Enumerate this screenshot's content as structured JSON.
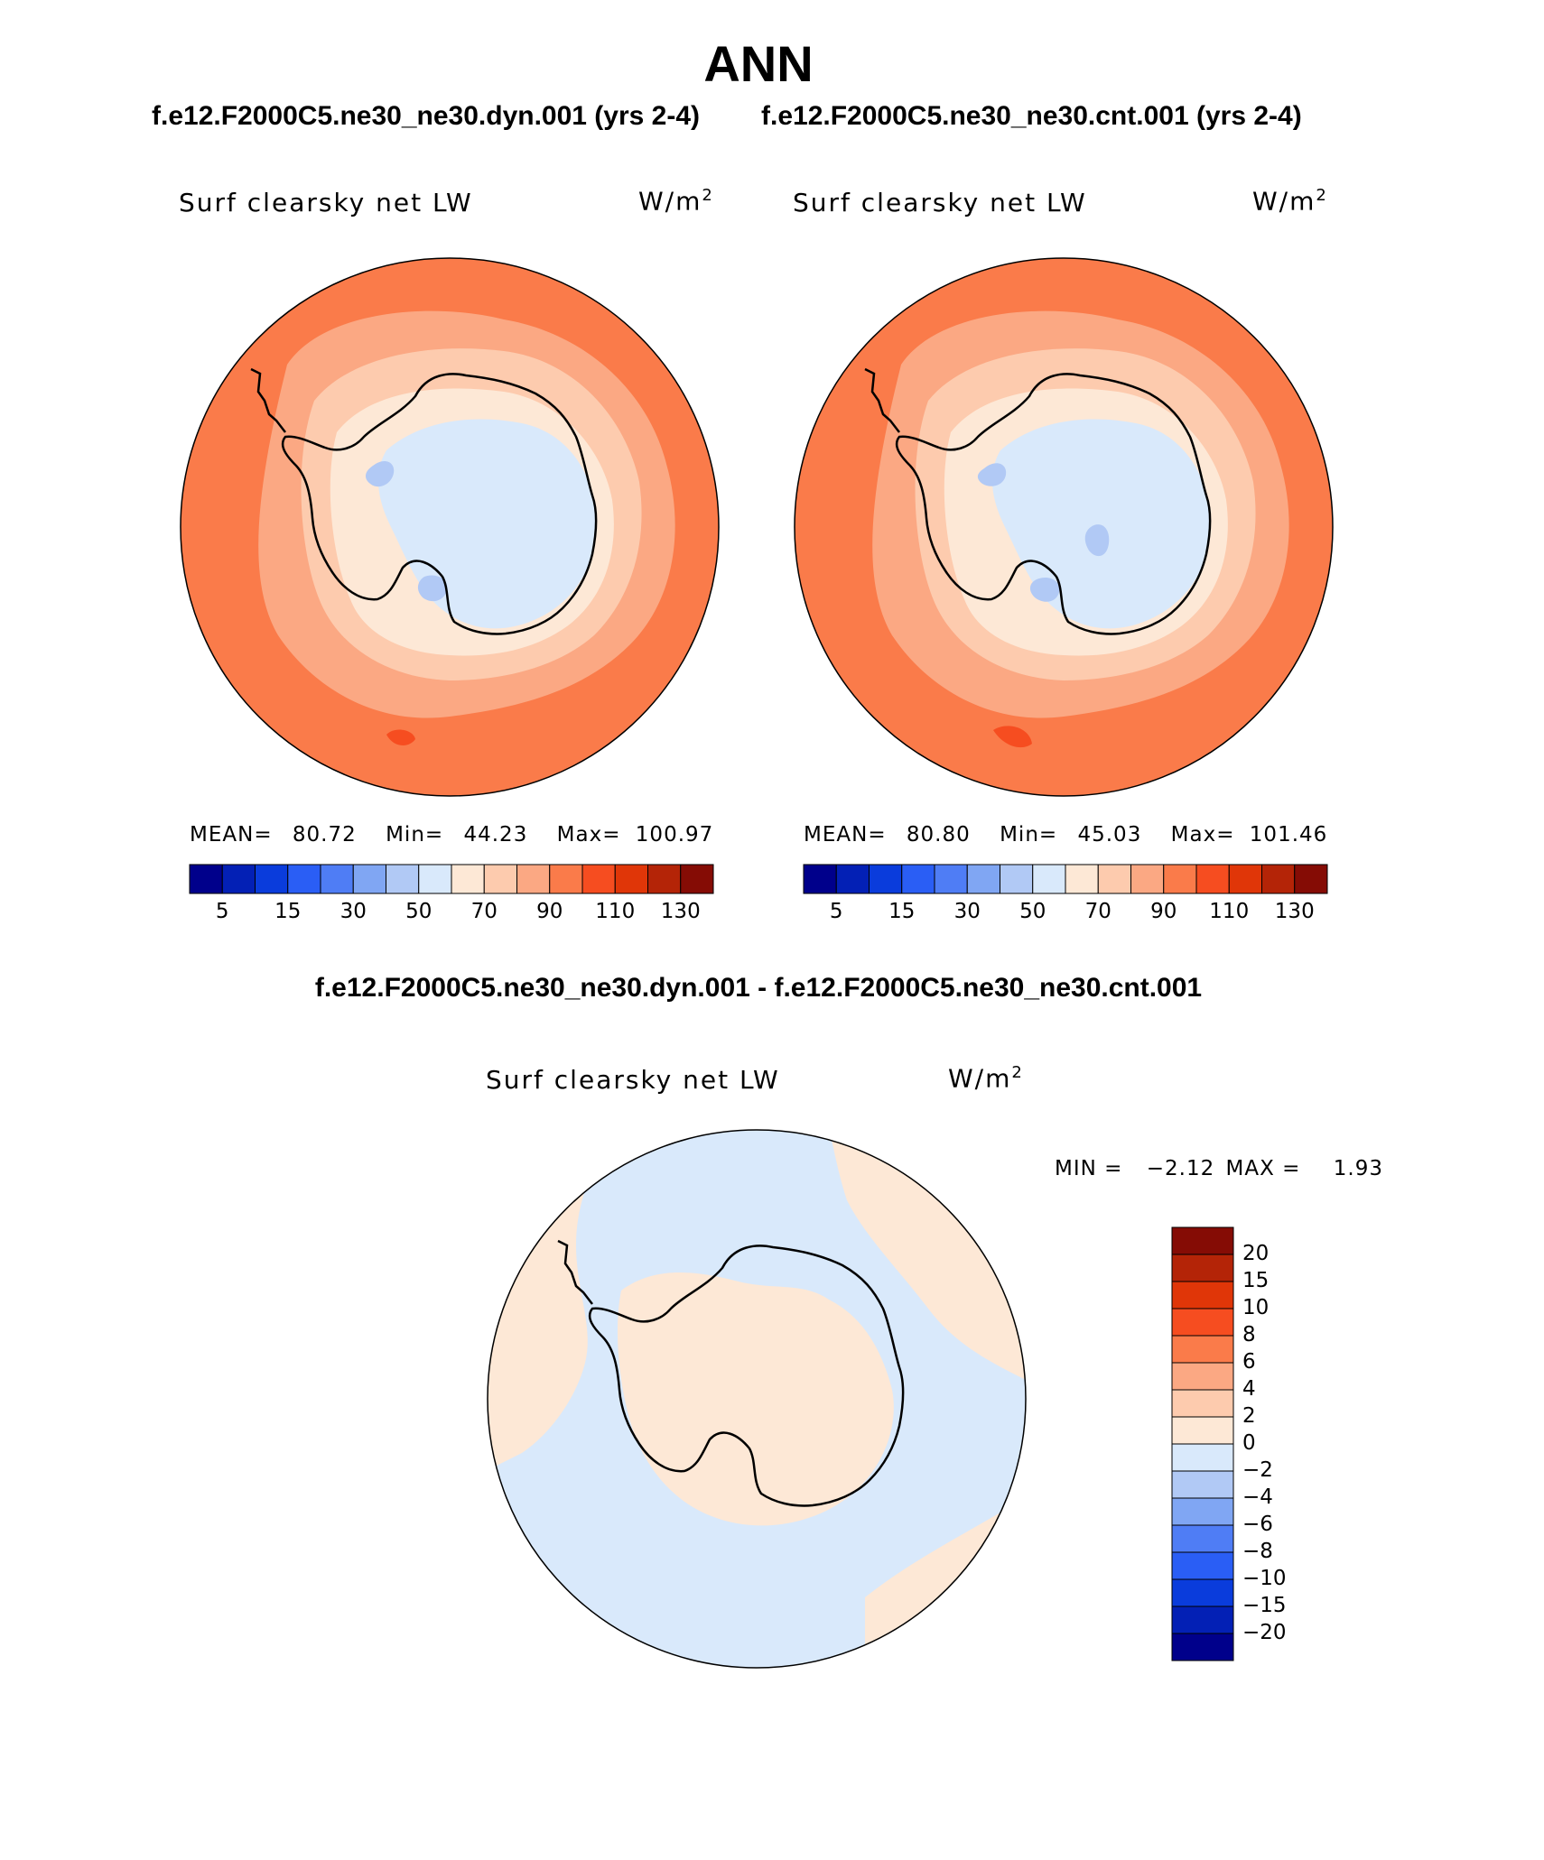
{
  "title": "ANN",
  "case_left": "f.e12.F2000C5.ne30_ne30.dyn.001 (yrs 2-4)",
  "case_right": "f.e12.F2000C5.ne30_ne30.cnt.001 (yrs 2-4)",
  "diff_title": "f.e12.F2000C5.ne30_ne30.dyn.001 - f.e12.F2000C5.ne30_ne30.cnt.001",
  "panels": {
    "left": {
      "variable": "Surf clearsky net LW",
      "units": "W/m",
      "units_exp": "2",
      "mean_label": "MEAN=",
      "mean": "80.72",
      "min_label": "Min=",
      "min": "44.23",
      "max_label": "Max=",
      "max": "100.97"
    },
    "right": {
      "variable": "Surf clearsky net LW",
      "units": "W/m",
      "units_exp": "2",
      "mean_label": "MEAN=",
      "mean": "80.80",
      "min_label": "Min=",
      "min": "45.03",
      "max_label": "Max=",
      "max": "101.46"
    },
    "diff": {
      "variable": "Surf clearsky net LW",
      "units": "W/m",
      "units_exp": "2",
      "min_label": "MIN =",
      "min": "−2.12",
      "max_label": "MAX =",
      "max": "1.93"
    }
  },
  "colorbar_field": {
    "colors": [
      "#00008b",
      "#0320b5",
      "#0a3cdc",
      "#2a5ef5",
      "#4f7df5",
      "#80a6f3",
      "#b1c9f5",
      "#d9e9fb",
      "#fde8d6",
      "#fdcbae",
      "#fba883",
      "#fa7b4a",
      "#f64d20",
      "#e03608",
      "#b42407",
      "#850c05"
    ],
    "tick_labels": [
      "5",
      "15",
      "30",
      "50",
      "70",
      "90",
      "110",
      "130"
    ]
  },
  "colorbar_diff": {
    "colors": [
      "#850c05",
      "#b42407",
      "#e03608",
      "#f64d20",
      "#fa7b4a",
      "#fba883",
      "#fdcbae",
      "#fde8d6",
      "#d9e9fb",
      "#b1c9f5",
      "#80a6f3",
      "#4f7df5",
      "#2a5ef5",
      "#0a3cdc",
      "#0320b5",
      "#00008b"
    ],
    "tick_labels": [
      "20",
      "15",
      "10",
      "8",
      "6",
      "4",
      "2",
      "0",
      "−2",
      "−4",
      "−6",
      "−8",
      "−10",
      "−15",
      "−20"
    ]
  }
}
